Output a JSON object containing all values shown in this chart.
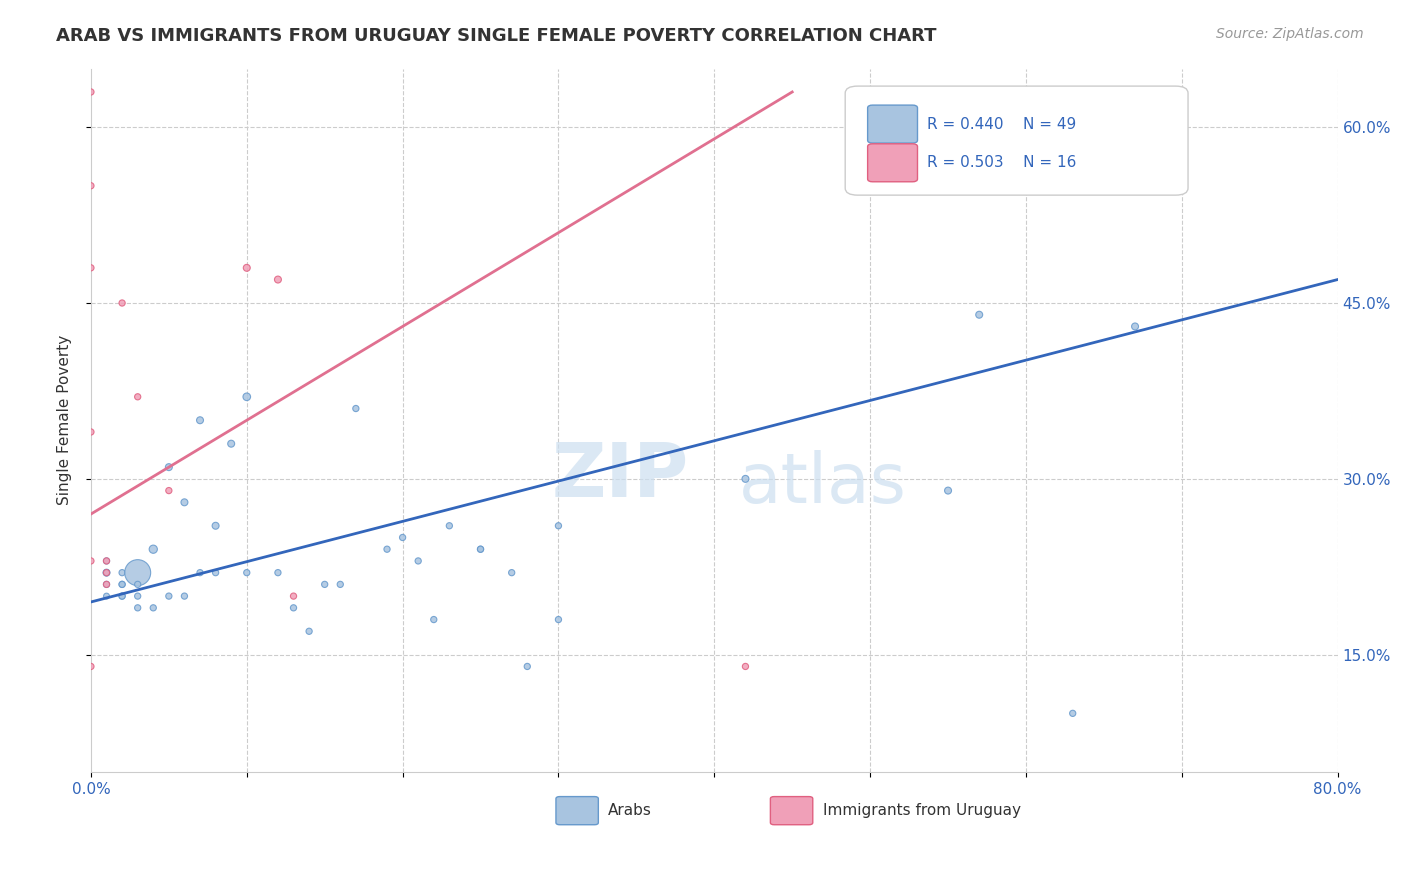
{
  "title": "ARAB VS IMMIGRANTS FROM URUGUAY SINGLE FEMALE POVERTY CORRELATION CHART",
  "source": "Source: ZipAtlas.com",
  "ylabel": "Single Female Poverty",
  "watermark_zip": "ZIP",
  "watermark_atlas": "atlas",
  "xlim": [
    0.0,
    0.8
  ],
  "ylim": [
    0.05,
    0.65
  ],
  "xticks": [
    0.0,
    0.1,
    0.2,
    0.3,
    0.4,
    0.5,
    0.6,
    0.7,
    0.8
  ],
  "xticklabels": [
    "0.0%",
    "",
    "",
    "",
    "",
    "",
    "",
    "",
    "80.0%"
  ],
  "yticks_right": [
    0.15,
    0.3,
    0.45,
    0.6
  ],
  "ytick_right_labels": [
    "15.0%",
    "30.0%",
    "45.0%",
    "60.0%"
  ],
  "legend_r_arab": "R = 0.440",
  "legend_n_arab": "N = 49",
  "legend_r_uruguay": "R = 0.503",
  "legend_n_uruguay": "N = 16",
  "arab_color": "#a8c4e0",
  "arab_color_dark": "#6699cc",
  "uruguay_color": "#f0a0b8",
  "uruguay_color_dark": "#e06080",
  "trendline_arab_color": "#3366bb",
  "trendline_uruguay_color": "#e07090",
  "arab_x": [
    0.01,
    0.01,
    0.01,
    0.01,
    0.01,
    0.02,
    0.02,
    0.02,
    0.02,
    0.02,
    0.03,
    0.03,
    0.03,
    0.03,
    0.04,
    0.04,
    0.05,
    0.05,
    0.06,
    0.06,
    0.07,
    0.07,
    0.08,
    0.08,
    0.09,
    0.1,
    0.1,
    0.12,
    0.13,
    0.14,
    0.15,
    0.16,
    0.17,
    0.19,
    0.2,
    0.21,
    0.22,
    0.23,
    0.25,
    0.25,
    0.27,
    0.28,
    0.3,
    0.3,
    0.42,
    0.55,
    0.57,
    0.63,
    0.67
  ],
  "arab_y": [
    0.23,
    0.22,
    0.22,
    0.21,
    0.2,
    0.22,
    0.21,
    0.21,
    0.2,
    0.2,
    0.22,
    0.21,
    0.2,
    0.19,
    0.19,
    0.24,
    0.31,
    0.2,
    0.28,
    0.2,
    0.35,
    0.22,
    0.26,
    0.22,
    0.33,
    0.37,
    0.22,
    0.22,
    0.19,
    0.17,
    0.21,
    0.21,
    0.36,
    0.24,
    0.25,
    0.23,
    0.18,
    0.26,
    0.24,
    0.24,
    0.22,
    0.14,
    0.26,
    0.18,
    0.3,
    0.29,
    0.44,
    0.1,
    0.43
  ],
  "arab_size": [
    20,
    25,
    20,
    20,
    18,
    20,
    20,
    20,
    20,
    20,
    350,
    20,
    20,
    20,
    20,
    35,
    25,
    20,
    25,
    20,
    25,
    20,
    25,
    20,
    25,
    30,
    20,
    20,
    20,
    20,
    20,
    20,
    20,
    20,
    20,
    20,
    20,
    20,
    20,
    20,
    20,
    20,
    20,
    20,
    25,
    25,
    25,
    20,
    25
  ],
  "uruguay_x": [
    0.0,
    0.0,
    0.0,
    0.0,
    0.0,
    0.0,
    0.01,
    0.01,
    0.01,
    0.02,
    0.03,
    0.05,
    0.1,
    0.12,
    0.13,
    0.42
  ],
  "uruguay_y": [
    0.63,
    0.55,
    0.48,
    0.34,
    0.23,
    0.14,
    0.23,
    0.22,
    0.21,
    0.45,
    0.37,
    0.29,
    0.48,
    0.47,
    0.2,
    0.14
  ],
  "uruguay_size": [
    20,
    20,
    20,
    20,
    20,
    20,
    20,
    20,
    20,
    20,
    20,
    20,
    25,
    25,
    20,
    20
  ],
  "arab_trend_x": [
    0.0,
    0.8
  ],
  "arab_trend_y": [
    0.195,
    0.47
  ],
  "uruguay_trend_x": [
    0.0,
    0.45
  ],
  "uruguay_trend_y": [
    0.27,
    0.63
  ]
}
